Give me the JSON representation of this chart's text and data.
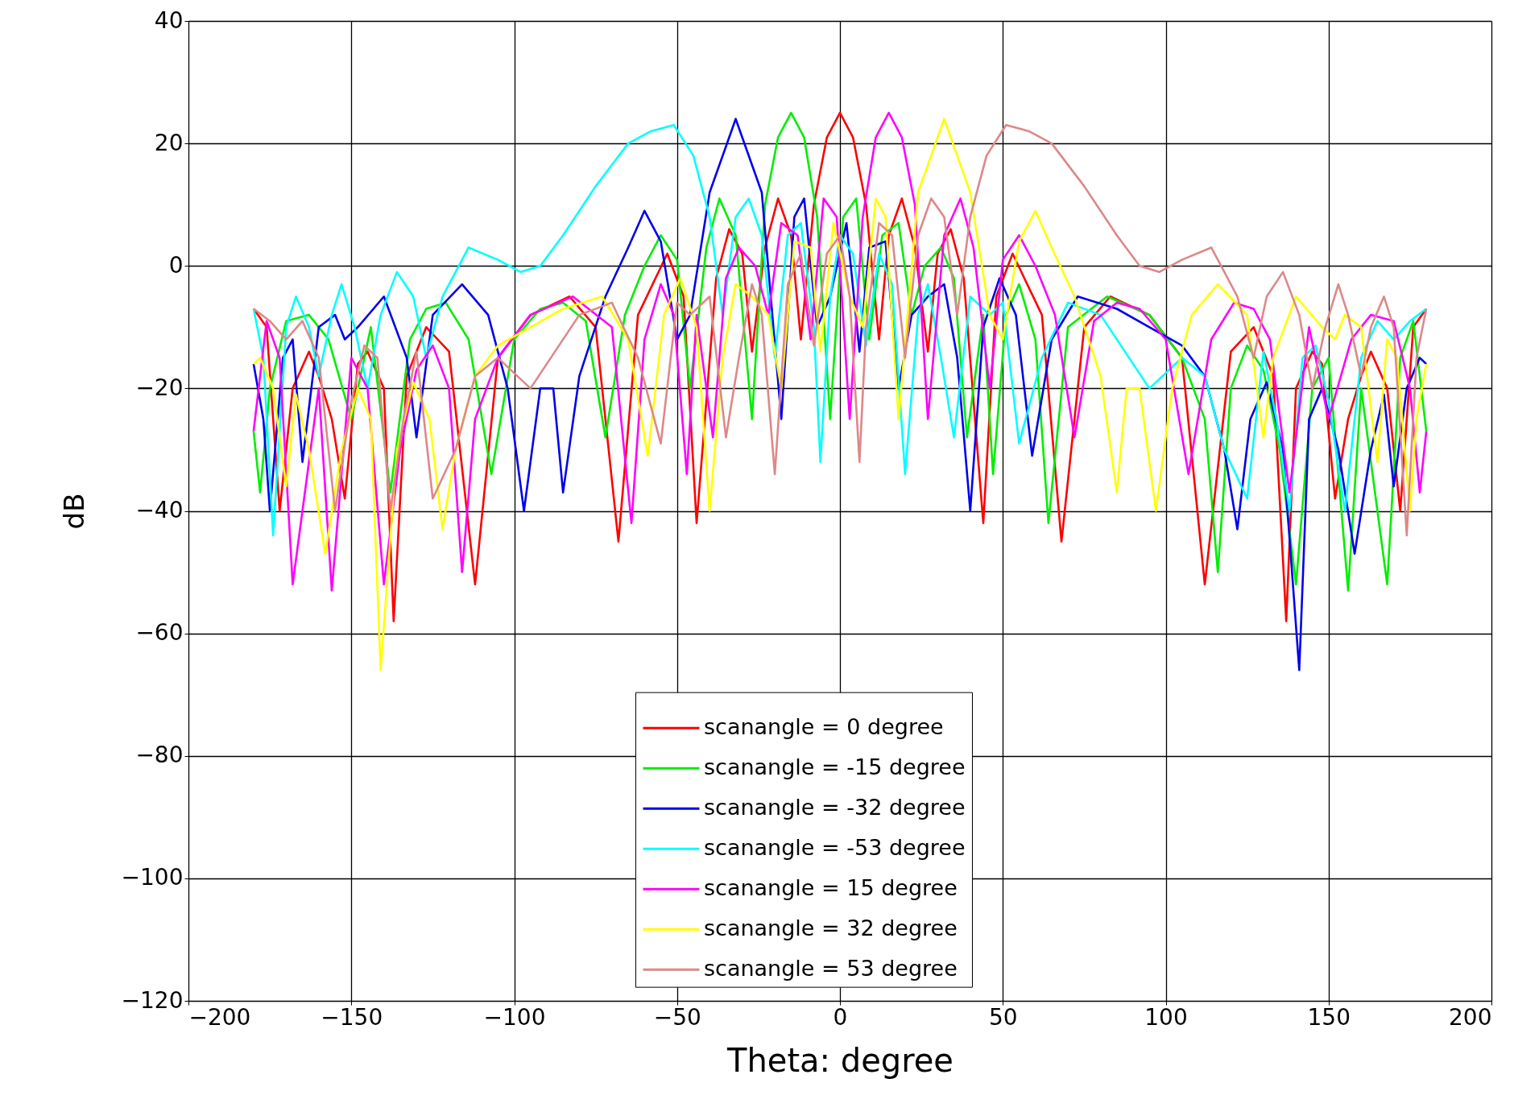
{
  "chart_data": {
    "type": "line",
    "xlabel": "Theta: degree",
    "ylabel": "dB",
    "xlim": [
      -200,
      200
    ],
    "xticks": [
      -200,
      -150,
      -100,
      -50,
      0,
      50,
      100,
      150,
      200
    ],
    "ylim": [
      -120,
      40
    ],
    "yticks": [
      -120,
      -100,
      -80,
      -60,
      -40,
      -20,
      0,
      20,
      40
    ],
    "grid": true,
    "legend": "bottom",
    "line_style": "solid",
    "marker": "none",
    "series": [
      {
        "name": "scanangle = 0 degree",
        "color": "#ff0000",
        "x": [
          -180,
          -176,
          -172,
          -168,
          -163,
          -160,
          -156,
          -152,
          -148,
          -145,
          -140,
          -137,
          -133,
          -127,
          -120,
          -112,
          -105,
          -95,
          -83,
          -75,
          -68,
          -62,
          -53,
          -48,
          -44,
          -38,
          -34,
          -30,
          -27,
          -23,
          -19,
          -15,
          -12,
          -8,
          -4,
          0,
          4,
          8,
          12,
          15,
          19,
          23,
          27,
          30,
          34,
          38,
          44,
          48,
          53,
          62,
          68,
          75,
          83,
          95,
          105,
          112,
          120,
          127,
          133,
          137,
          140,
          145,
          148,
          152,
          156,
          160,
          163,
          168,
          172,
          176,
          180
        ],
        "values": [
          -7,
          -10,
          -40,
          -20,
          -14,
          -18,
          -25,
          -38,
          -16,
          -14,
          -20,
          -58,
          -18,
          -10,
          -14,
          -52,
          -15,
          -8,
          -5,
          -10,
          -45,
          -8,
          2,
          -5,
          -42,
          -2,
          6,
          2,
          -14,
          3,
          11,
          5,
          -12,
          10,
          21,
          25,
          21,
          10,
          -12,
          5,
          11,
          3,
          -14,
          2,
          6,
          -2,
          -42,
          -5,
          2,
          -8,
          -45,
          -10,
          -5,
          -8,
          -15,
          -52,
          -14,
          -10,
          -18,
          -58,
          -20,
          -14,
          -16,
          -38,
          -25,
          -18,
          -14,
          -20,
          -40,
          -10,
          -7
        ]
      },
      {
        "name": "scanangle = -15 degree",
        "color": "#00ee00",
        "x": [
          -180,
          -178,
          -175,
          -170,
          -163,
          -157,
          -150,
          -144,
          -138,
          -132,
          -127,
          -121,
          -114,
          -107,
          -100,
          -92,
          -85,
          -78,
          -72,
          -66,
          -60,
          -55,
          -50,
          -46,
          -41,
          -37,
          -32,
          -27,
          -23,
          -19,
          -15,
          -11,
          -7,
          -3,
          1,
          5,
          9,
          13,
          18,
          22,
          26,
          31,
          35,
          39,
          44,
          47,
          51,
          55,
          60,
          64,
          70,
          82,
          95,
          105,
          112,
          116,
          120,
          125,
          130,
          135,
          140,
          145,
          150,
          156,
          160,
          168,
          172,
          176,
          180
        ],
        "values": [
          -27,
          -37,
          -20,
          -9,
          -8,
          -12,
          -25,
          -10,
          -37,
          -12,
          -7,
          -6,
          -12,
          -34,
          -12,
          -7,
          -6,
          -9,
          -28,
          -8,
          0,
          5,
          1,
          -20,
          3,
          11,
          5,
          -25,
          10,
          21,
          25,
          21,
          8,
          -25,
          8,
          11,
          -12,
          5,
          7,
          -8,
          0,
          3,
          -2,
          -28,
          -8,
          -34,
          -8,
          -3,
          -12,
          -42,
          -10,
          -5,
          -8,
          -15,
          -25,
          -50,
          -20,
          -13,
          -17,
          -30,
          -52,
          -20,
          -15,
          -53,
          -20,
          -52,
          -15,
          -9,
          -27
        ]
      },
      {
        "name": "scanangle = -32 degree",
        "color": "#0000ee",
        "x": [
          -180,
          -177,
          -175,
          -171,
          -168,
          -165,
          -160,
          -155,
          -152,
          -148,
          -140,
          -133,
          -130,
          -125,
          -116,
          -108,
          -102,
          -97,
          -92,
          -88,
          -85,
          -80,
          -72,
          -65,
          -60,
          -55,
          -50,
          -46,
          -40,
          -32,
          -24,
          -18,
          -14,
          -11,
          -7,
          -3,
          2,
          6,
          9,
          14,
          18,
          22,
          27,
          32,
          36,
          40,
          44,
          49,
          54,
          59,
          65,
          73,
          85,
          95,
          105,
          112,
          118,
          122,
          126,
          131,
          136,
          141,
          144,
          148,
          153,
          158,
          163,
          167,
          170,
          174,
          178,
          180
        ],
        "values": [
          -16,
          -25,
          -40,
          -15,
          -12,
          -32,
          -10,
          -8,
          -12,
          -10,
          -5,
          -15,
          -28,
          -8,
          -3,
          -8,
          -20,
          -40,
          -20,
          -20,
          -37,
          -18,
          -5,
          3,
          9,
          4,
          -12,
          -8,
          12,
          24,
          12,
          -25,
          8,
          11,
          -10,
          -5,
          7,
          -14,
          3,
          4,
          -20,
          -8,
          -5,
          -3,
          -15,
          -40,
          -10,
          -2,
          -8,
          -31,
          -12,
          -5,
          -7,
          -10,
          -13,
          -18,
          -30,
          -43,
          -25,
          -19,
          -30,
          -66,
          -25,
          -20,
          -30,
          -47,
          -30,
          -21,
          -36,
          -20,
          -15,
          -16
        ]
      },
      {
        "name": "scanangle = -53 degree",
        "color": "#00ffff",
        "x": [
          -180,
          -177,
          -174,
          -170,
          -167,
          -163,
          -160,
          -156,
          -153,
          -149,
          -145,
          -141,
          -136,
          -131,
          -127,
          -122,
          -114,
          -105,
          -98,
          -92,
          -85,
          -75,
          -65,
          -58,
          -51,
          -45,
          -40,
          -36,
          -32,
          -28,
          -24,
          -20,
          -16,
          -12,
          -8,
          -6,
          -3,
          0,
          4,
          8,
          12,
          16,
          20,
          24,
          27,
          31,
          35,
          40,
          46,
          50,
          55,
          62,
          70,
          80,
          95,
          105,
          112,
          118,
          125,
          130,
          134,
          138,
          142,
          146,
          150,
          155,
          160,
          165,
          170,
          175,
          180
        ],
        "values": [
          -7,
          -15,
          -44,
          -10,
          -5,
          -10,
          -18,
          -8,
          -3,
          -10,
          -20,
          -8,
          -1,
          -5,
          -15,
          -5,
          3,
          1,
          -1,
          0,
          5,
          13,
          20,
          22,
          23,
          18,
          8,
          -8,
          8,
          11,
          5,
          -15,
          5,
          7,
          -10,
          -32,
          -5,
          5,
          2,
          -13,
          2,
          -3,
          -34,
          -8,
          -3,
          -15,
          -28,
          -5,
          -8,
          -6,
          -29,
          -15,
          -6,
          -8,
          -20,
          -15,
          -18,
          -30,
          -38,
          -14,
          -25,
          -40,
          -15,
          -13,
          -22,
          -40,
          -15,
          -9,
          -12,
          -9,
          -7
        ]
      },
      {
        "name": "scanangle = 15 degree",
        "color": "#ff00ff",
        "x": [
          -180,
          -176,
          -172,
          -168,
          -160,
          -156,
          -150,
          -145,
          -140,
          -135,
          -130,
          -125,
          -120,
          -116,
          -112,
          -105,
          -95,
          -82,
          -70,
          -64,
          -60,
          -55,
          -51,
          -47,
          -44,
          -39,
          -35,
          -31,
          -26,
          -22,
          -18,
          -13,
          -9,
          -5,
          -1,
          3,
          7,
          11,
          15,
          19,
          23,
          27,
          32,
          37,
          41,
          46,
          50,
          55,
          60,
          66,
          72,
          78,
          85,
          92,
          100,
          107,
          114,
          121,
          127,
          132,
          138,
          144,
          150,
          157,
          163,
          170,
          175,
          178,
          180
        ],
        "values": [
          -27,
          -9,
          -15,
          -52,
          -20,
          -53,
          -15,
          -20,
          -52,
          -30,
          -17,
          -13,
          -20,
          -50,
          -25,
          -15,
          -8,
          -5,
          -10,
          -42,
          -12,
          -3,
          -8,
          -34,
          -8,
          -28,
          -2,
          3,
          0,
          -8,
          7,
          5,
          -12,
          11,
          8,
          -25,
          8,
          21,
          25,
          21,
          10,
          -25,
          5,
          11,
          3,
          -20,
          1,
          5,
          0,
          -8,
          -28,
          -9,
          -6,
          -7,
          -12,
          -34,
          -12,
          -6,
          -7,
          -12,
          -37,
          -10,
          -25,
          -12,
          -8,
          -9,
          -20,
          -37,
          -27
        ]
      },
      {
        "name": "scanangle = 32 degree",
        "color": "#ffff00",
        "x": [
          -180,
          -178,
          -174,
          -170,
          -167,
          -163,
          -158,
          -153,
          -148,
          -144,
          -141,
          -136,
          -131,
          -126,
          -122,
          -118,
          -112,
          -105,
          -95,
          -85,
          -73,
          -65,
          -59,
          -54,
          -49,
          -44,
          -40,
          -36,
          -32,
          -27,
          -22,
          -18,
          -14,
          -9,
          -6,
          -2,
          3,
          7,
          11,
          14,
          18,
          24,
          32,
          40,
          46,
          50,
          55,
          60,
          65,
          72,
          80,
          85,
          88,
          92,
          97,
          102,
          108,
          116,
          125,
          130,
          133,
          140,
          148,
          152,
          155,
          160,
          165,
          168,
          171,
          175,
          177,
          180
        ],
        "values": [
          -16,
          -15,
          -20,
          -36,
          -21,
          -30,
          -47,
          -30,
          -20,
          -25,
          -66,
          -30,
          -19,
          -25,
          -43,
          -30,
          -18,
          -13,
          -10,
          -7,
          -5,
          -12,
          -31,
          -8,
          -2,
          -10,
          -40,
          -15,
          -3,
          -5,
          -8,
          -20,
          4,
          3,
          -14,
          7,
          -5,
          -10,
          11,
          8,
          -25,
          12,
          24,
          12,
          -8,
          -12,
          4,
          9,
          3,
          -5,
          -18,
          -37,
          -20,
          -20,
          -40,
          -20,
          -8,
          -3,
          -8,
          -28,
          -15,
          -5,
          -10,
          -12,
          -8,
          -10,
          -32,
          -12,
          -15,
          -40,
          -25,
          -16
        ]
      },
      {
        "name": "scanangle = 53 degree",
        "color": "#dd8888",
        "x": [
          -180,
          -175,
          -170,
          -165,
          -160,
          -155,
          -150,
          -146,
          -142,
          -138,
          -134,
          -130,
          -125,
          -118,
          -112,
          -105,
          -95,
          -80,
          -70,
          -62,
          -55,
          -50,
          -46,
          -40,
          -35,
          -31,
          -27,
          -24,
          -20,
          -16,
          -12,
          -8,
          -4,
          0,
          3,
          6,
          8,
          12,
          16,
          20,
          24,
          28,
          32,
          36,
          40,
          45,
          51,
          58,
          65,
          75,
          85,
          92,
          98,
          105,
          114,
          122,
          127,
          131,
          136,
          141,
          145,
          149,
          153,
          156,
          160,
          163,
          167,
          170,
          174,
          177,
          180
        ],
        "values": [
          -7,
          -9,
          -12,
          -9,
          -15,
          -40,
          -22,
          -13,
          -15,
          -40,
          -25,
          -14,
          -38,
          -30,
          -18,
          -15,
          -20,
          -8,
          -6,
          -15,
          -29,
          -6,
          -8,
          -5,
          -28,
          -15,
          -3,
          -8,
          -34,
          -3,
          2,
          -13,
          2,
          5,
          -5,
          -32,
          -10,
          7,
          5,
          -15,
          5,
          11,
          8,
          -8,
          8,
          18,
          23,
          22,
          20,
          13,
          5,
          0,
          -1,
          1,
          3,
          -5,
          -15,
          -5,
          -1,
          -8,
          -20,
          -10,
          -3,
          -8,
          -18,
          -10,
          -5,
          -10,
          -44,
          -15,
          -7
        ]
      }
    ]
  }
}
